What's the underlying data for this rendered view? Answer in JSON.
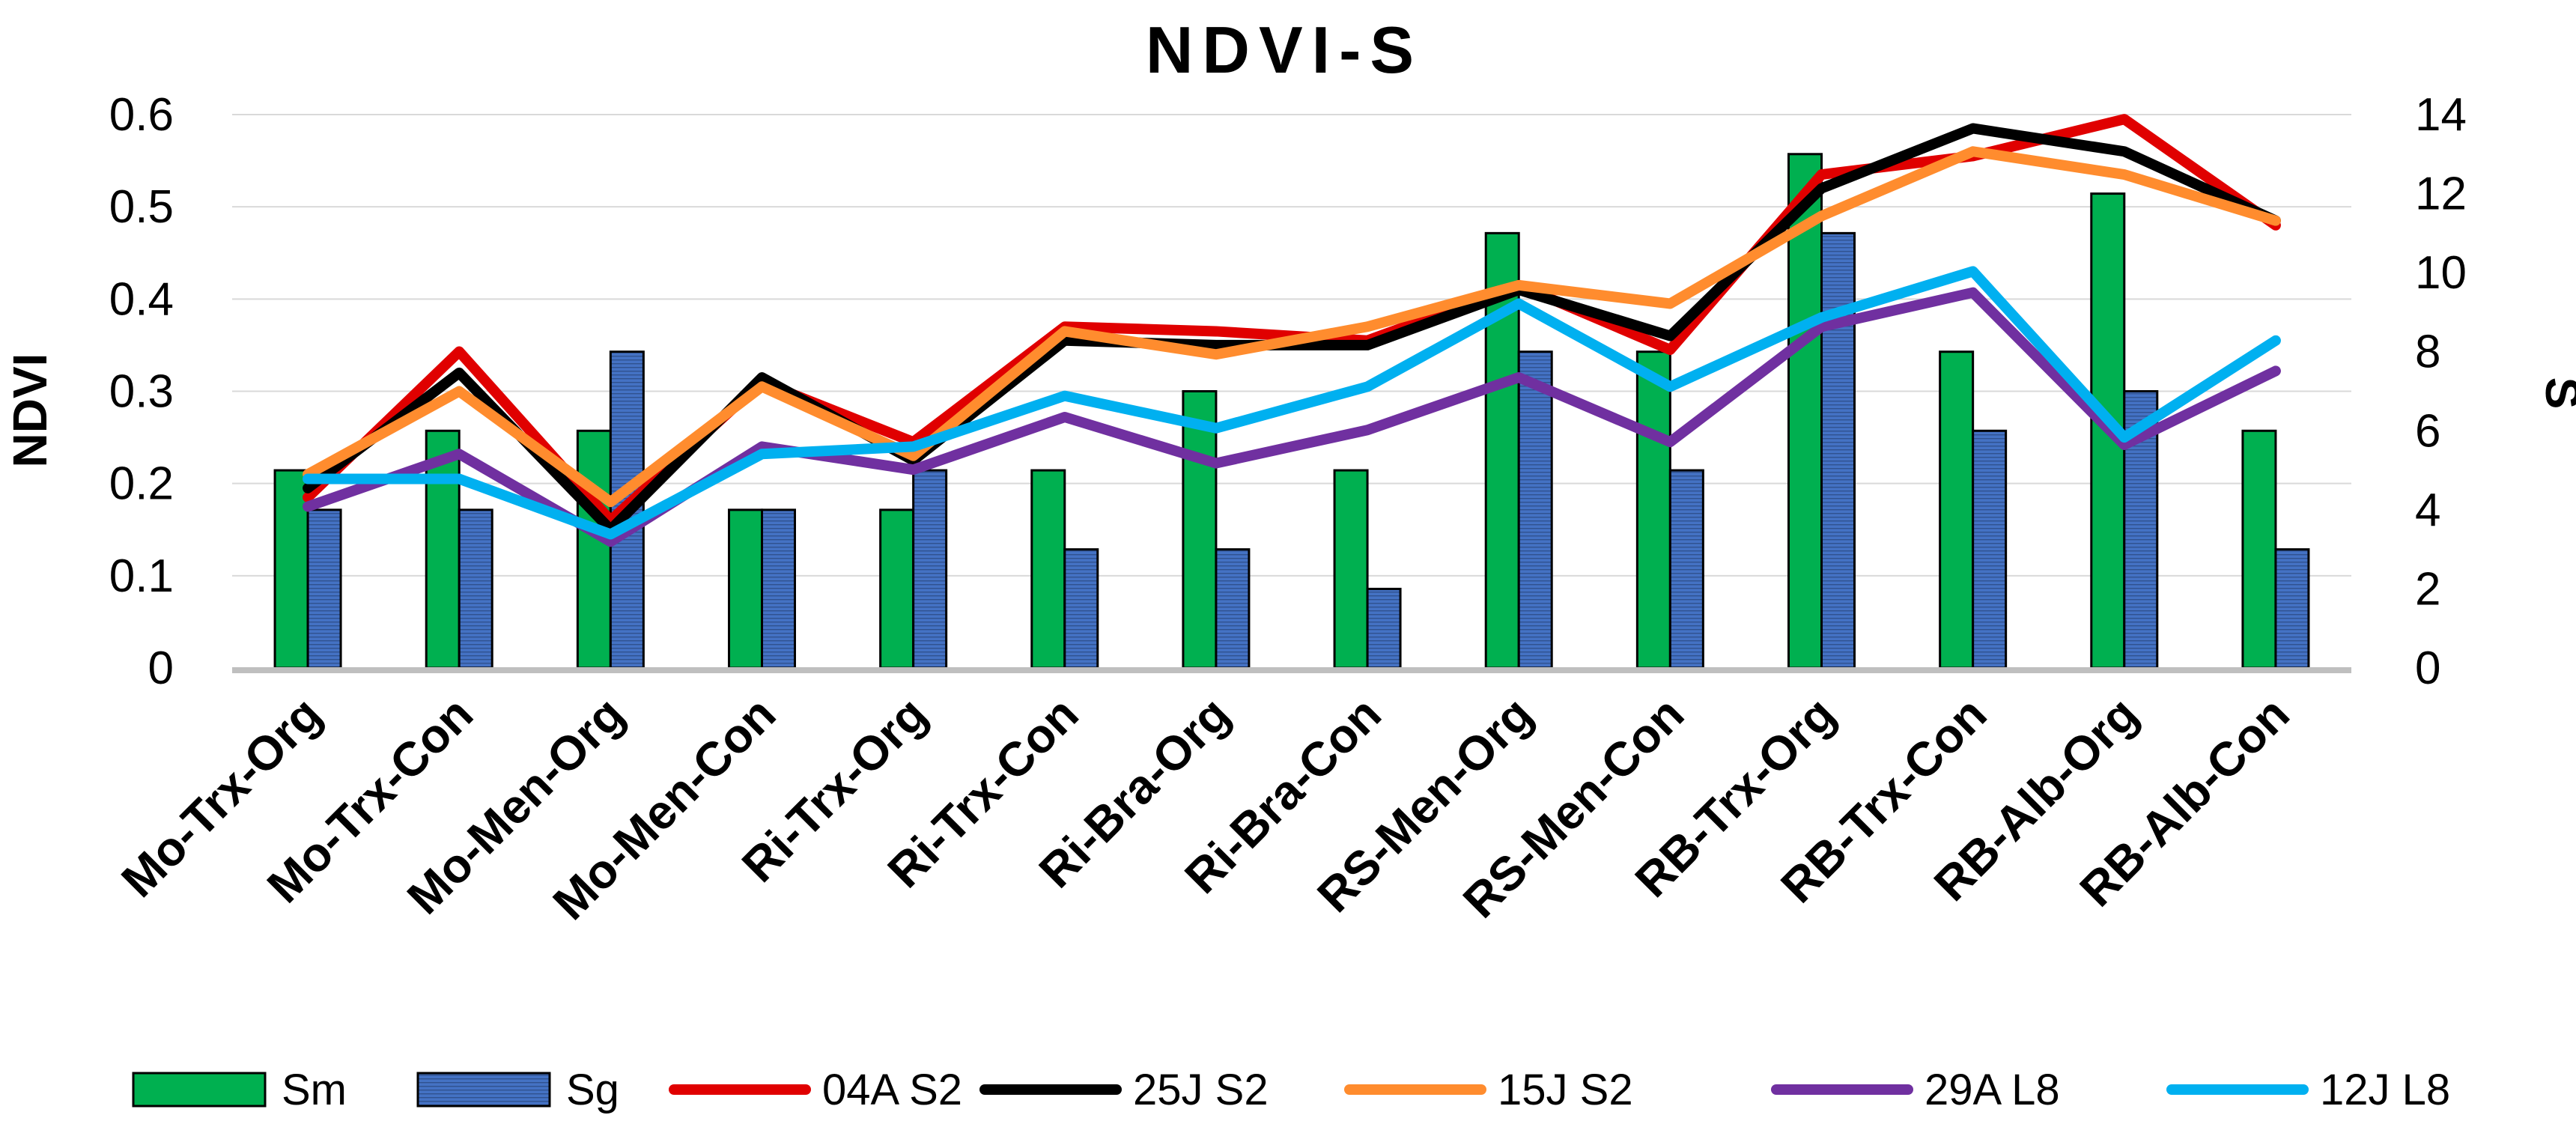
{
  "chart_data": {
    "type": "bar+line",
    "title": "NDVI-S",
    "ylabel": "NDVI",
    "y2label": "S",
    "ylim": [
      0,
      0.6
    ],
    "y2lim": [
      0,
      14
    ],
    "yticks": [
      "0",
      "0.1",
      "0.2",
      "0.3",
      "0.4",
      "0.5",
      "0.6"
    ],
    "y2ticks": [
      "0",
      "2",
      "4",
      "6",
      "8",
      "10",
      "12",
      "14"
    ],
    "categories": [
      "Mo-Trx-Org",
      "Mo-Trx-Con",
      "Mo-Men-Org",
      "Mo-Men-Con",
      "Ri-Trx-Org",
      "Ri-Trx-Con",
      "Ri-Bra-Org",
      "Ri-Bra-Con",
      "RS-Men-Org",
      "RS-Men-Con",
      "RB-Trx-Org",
      "RB-Trx-Con",
      "RB-Alb-Org",
      "RB-Alb-Con"
    ],
    "bar_series": [
      {
        "name": "Sm",
        "axis": "S",
        "color": "#00b050",
        "values": [
          5,
          6,
          6,
          4,
          4,
          5,
          7,
          5,
          11,
          8,
          13,
          8,
          12,
          6
        ]
      },
      {
        "name": "Sg",
        "axis": "S",
        "color": "#4472c4",
        "values": [
          4,
          4,
          8,
          4,
          5,
          3,
          3,
          2,
          8,
          5,
          11,
          6,
          7,
          3
        ]
      }
    ],
    "line_series": [
      {
        "name": "04A S2",
        "axis": "NDVI",
        "color": "#e00000",
        "values": [
          0.185,
          0.343,
          0.16,
          0.31,
          0.245,
          0.37,
          0.365,
          0.355,
          0.415,
          0.345,
          0.535,
          0.555,
          0.595,
          0.48
        ]
      },
      {
        "name": "25J S2",
        "axis": "NDVI",
        "color": "#000000",
        "values": [
          0.195,
          0.32,
          0.15,
          0.315,
          0.225,
          0.355,
          0.35,
          0.35,
          0.41,
          0.36,
          0.52,
          0.585,
          0.56,
          0.485
        ]
      },
      {
        "name": "15J S2",
        "axis": "NDVI",
        "color": "#ff8c2e",
        "values": [
          0.21,
          0.3,
          0.18,
          0.305,
          0.23,
          0.365,
          0.34,
          0.37,
          0.415,
          0.395,
          0.49,
          0.56,
          0.535,
          0.485
        ]
      },
      {
        "name": "29A L8",
        "axis": "NDVI",
        "color": "#7030a0",
        "values": [
          0.175,
          0.232,
          0.137,
          0.24,
          0.215,
          0.272,
          0.222,
          0.258,
          0.315,
          0.245,
          0.37,
          0.407,
          0.242,
          0.322
        ]
      },
      {
        "name": "12J L8",
        "axis": "NDVI",
        "color": "#00b0f0",
        "values": [
          0.205,
          0.205,
          0.145,
          0.232,
          0.24,
          0.295,
          0.26,
          0.305,
          0.395,
          0.305,
          0.38,
          0.43,
          0.25,
          0.355
        ]
      }
    ],
    "legend": [
      "Sm",
      "Sg",
      "04A S2",
      "25J S2",
      "15J S2",
      "29A L8",
      "12J L8"
    ],
    "legend_position": "bottom",
    "grid": true
  }
}
